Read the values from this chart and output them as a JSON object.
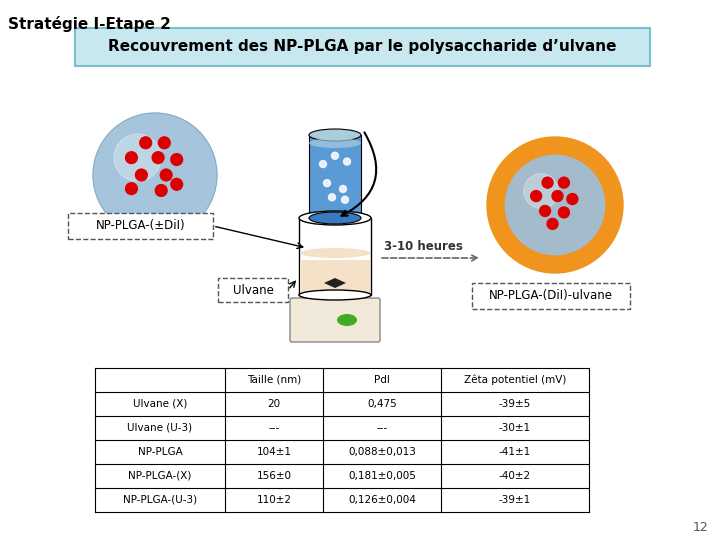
{
  "title": "Stratégie I-Etape 2",
  "subtitle": "Recouvrement des NP-PLGA par le polysaccharide d’ulvane",
  "subtitle_box_color": "#c8e8f0",
  "subtitle_box_edge": "#7bbfcc",
  "label_np_plga": "NP-PLGA-(±DiI)",
  "label_ulvane": "Ulvane",
  "label_3_10": "3-10 heures",
  "label_result": "NP-PLGA-(DiI)-ulvane",
  "table_headers": [
    "",
    "Taille (nm)",
    "PdI",
    "Zêta potentiel (mV)"
  ],
  "table_rows": [
    [
      "Ulvane (X)",
      "20",
      "0,475",
      "-39±5"
    ],
    [
      "Ulvane (U-3)",
      "---",
      "---",
      "-30±1"
    ],
    [
      "NP-PLGA",
      "104±1",
      "0,088±0,013",
      "-41±1"
    ],
    [
      "NP-PLGA-(X)",
      "156±0",
      "0,181±0,005",
      "-40±2"
    ],
    [
      "NP-PLGA-(U-3)",
      "110±2",
      "0,126±0,004",
      "-39±1"
    ]
  ],
  "page_number": "12",
  "bg_color": "#ffffff",
  "sphere_blue_color": "#9dbfda",
  "sphere_blue_dark": "#7aaabf",
  "sphere_orange_color": "#f0941e",
  "dot_red_color": "#dd0000",
  "dot_green_color": "#44aa22",
  "tube_blue_top": "#aaccdd",
  "tube_blue_body": "#5b9bd5",
  "tube_blue_dark": "#3a7abf",
  "beaker_body_color": "#f5e0c8",
  "beaker_base_color": "#f0e8d8",
  "stir_color": "#222222"
}
